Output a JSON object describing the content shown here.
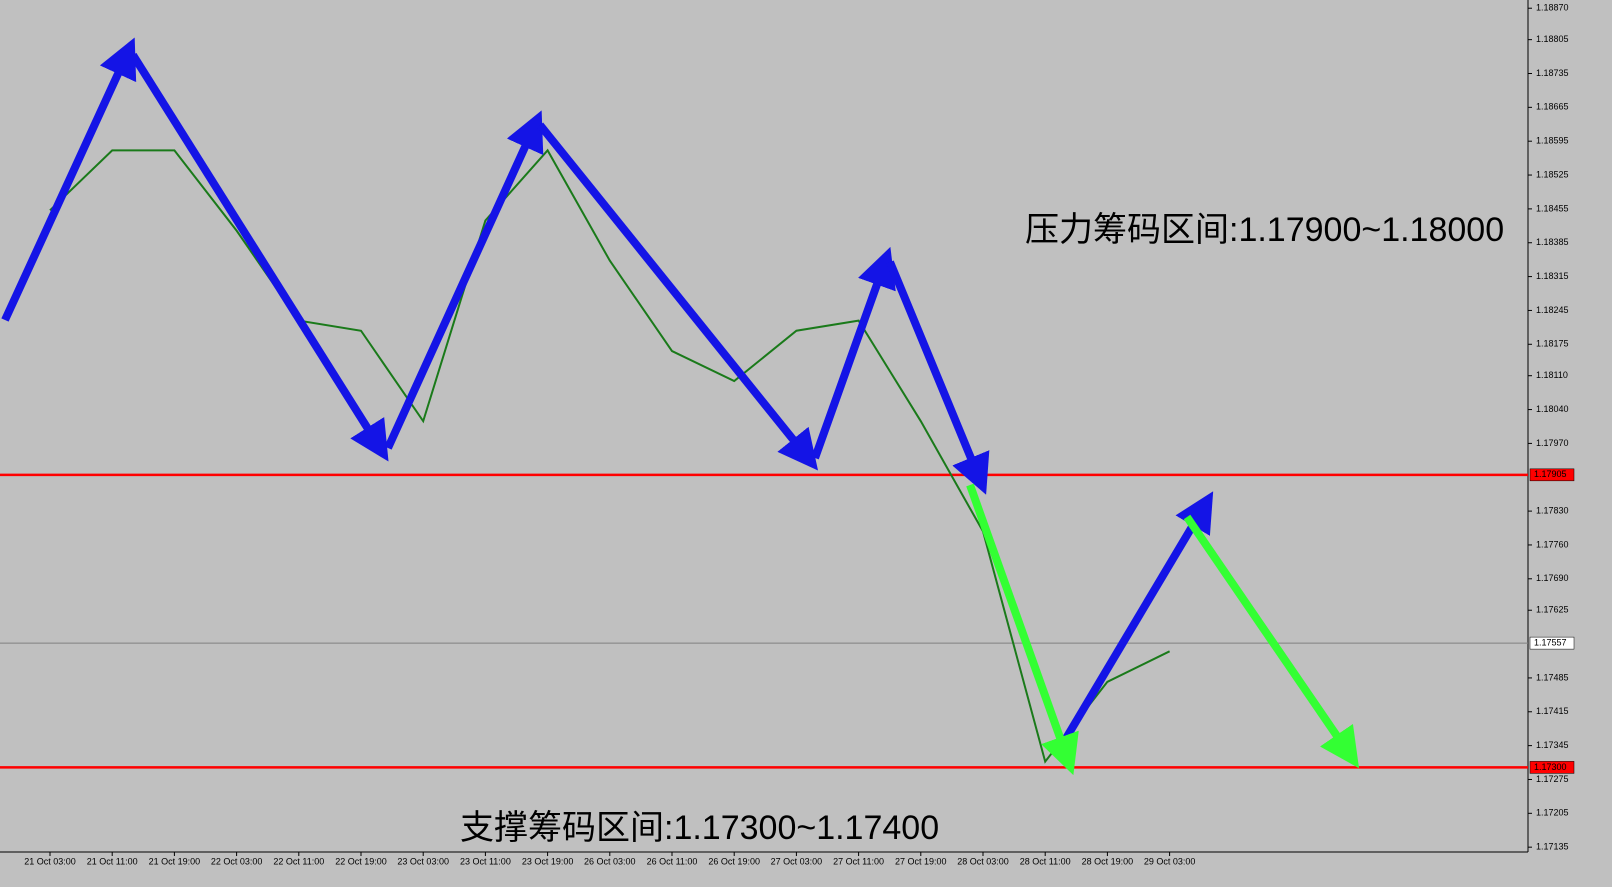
{
  "chart_data": {
    "type": "line",
    "categories": [
      "21 Oct 03:00",
      "21 Oct 11:00",
      "21 Oct 19:00",
      "22 Oct 03:00",
      "22 Oct 11:00",
      "22 Oct 19:00",
      "23 Oct 03:00",
      "23 Oct 11:00",
      "23 Oct 19:00",
      "26 Oct 03:00",
      "26 Oct 11:00",
      "26 Oct 19:00",
      "27 Oct 03:00",
      "27 Oct 11:00",
      "27 Oct 19:00",
      "28 Oct 03:00",
      "28 Oct 11:00",
      "28 Oct 19:00",
      "29 Oct 03:00"
    ],
    "values": [
      1.18452,
      1.18576,
      1.18576,
      1.1841,
      1.18224,
      1.18203,
      1.18016,
      1.18431,
      1.18576,
      1.18348,
      1.18161,
      1.18099,
      1.18203,
      1.18224,
      1.18016,
      1.17788,
      1.17312,
      1.17477,
      1.1754
    ],
    "color": "#1a7a1a",
    "ylim": [
      1.17125,
      1.18887
    ],
    "yticks": [
      {
        "value": 1.1887,
        "label": "1.18870"
      },
      {
        "value": 1.18805,
        "label": "1.18805"
      },
      {
        "value": 1.18735,
        "label": "1.18735"
      },
      {
        "value": 1.18665,
        "label": "1.18665"
      },
      {
        "value": 1.18595,
        "label": "1.18595"
      },
      {
        "value": 1.18525,
        "label": "1.18525"
      },
      {
        "value": 1.18455,
        "label": "1.18455"
      },
      {
        "value": 1.18385,
        "label": "1.18385"
      },
      {
        "value": 1.18315,
        "label": "1.18315"
      },
      {
        "value": 1.18245,
        "label": "1.18245"
      },
      {
        "value": 1.18175,
        "label": "1.18175"
      },
      {
        "value": 1.1811,
        "label": "1.18110"
      },
      {
        "value": 1.1804,
        "label": "1.18040"
      },
      {
        "value": 1.1797,
        "label": "1.17970"
      },
      {
        "value": 1.1783,
        "label": "1.17830"
      },
      {
        "value": 1.1776,
        "label": "1.17760"
      },
      {
        "value": 1.1769,
        "label": "1.17690"
      },
      {
        "value": 1.17625,
        "label": "1.17625"
      },
      {
        "value": 1.17485,
        "label": "1.17485"
      },
      {
        "value": 1.17415,
        "label": "1.17415"
      },
      {
        "value": 1.17345,
        "label": "1.17345"
      },
      {
        "value": 1.17275,
        "label": "1.17275"
      },
      {
        "value": 1.17205,
        "label": "1.17205"
      },
      {
        "value": 1.17135,
        "label": "1.17135"
      }
    ],
    "levels": [
      {
        "value": 1.17905,
        "label": "1.17905",
        "color": "#ff0000"
      },
      {
        "value": 1.173,
        "label": "1.17300",
        "color": "#ff0000"
      },
      {
        "value": 1.17557,
        "label": "1.17557",
        "color": "#808080"
      }
    ],
    "annotations": [
      "压力筹码区间:1.17900~1.18000",
      "支撑筹码区间:1.17300~1.17400"
    ]
  }
}
